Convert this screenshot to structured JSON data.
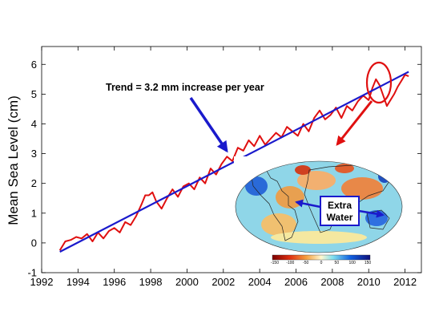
{
  "chart_data": {
    "type": "line",
    "ylabel": "Mean Sea Level (cm)",
    "xlabel": "",
    "title": "",
    "xlim": [
      1992,
      2012.9
    ],
    "ylim": [
      -1,
      6.6
    ],
    "x_ticks": [
      "1992",
      "1994",
      "1996",
      "1998",
      "2000",
      "2002",
      "2004",
      "2006",
      "2008",
      "2010",
      "2012"
    ],
    "y_ticks": [
      "-1",
      "0",
      "1",
      "2",
      "3",
      "4",
      "5",
      "6"
    ],
    "series": [
      {
        "color": "#e01010",
        "x": [
          1993.0,
          1993.3,
          1993.6,
          1993.9,
          1994.2,
          1994.5,
          1994.8,
          1995.1,
          1995.4,
          1995.7,
          1996.0,
          1996.3,
          1996.6,
          1996.9,
          1997.2,
          1997.5,
          1997.7,
          1997.9,
          1998.1,
          1998.3,
          1998.6,
          1998.9,
          1999.2,
          1999.5,
          1999.8,
          2000.1,
          2000.4,
          2000.7,
          2001.0,
          2001.3,
          2001.6,
          2001.9,
          2002.2,
          2002.5,
          2002.8,
          2003.1,
          2003.4,
          2003.7,
          2004.0,
          2004.3,
          2004.6,
          2004.9,
          2005.2,
          2005.5,
          2005.8,
          2006.1,
          2006.4,
          2006.7,
          2007.0,
          2007.3,
          2007.6,
          2007.9,
          2008.2,
          2008.5,
          2008.8,
          2009.1,
          2009.4,
          2009.7,
          2010.0,
          2010.2,
          2010.4,
          2010.6,
          2010.8,
          2011.0,
          2011.2,
          2011.4,
          2011.6,
          2011.8,
          2012.0,
          2012.2
        ],
        "values": [
          -0.25,
          0.05,
          0.1,
          0.2,
          0.15,
          0.3,
          0.05,
          0.35,
          0.15,
          0.4,
          0.5,
          0.35,
          0.7,
          0.6,
          0.9,
          1.3,
          1.6,
          1.6,
          1.7,
          1.4,
          1.15,
          1.5,
          1.8,
          1.55,
          1.9,
          2.0,
          1.8,
          2.2,
          2.0,
          2.5,
          2.3,
          2.65,
          2.9,
          2.75,
          3.2,
          3.1,
          3.45,
          3.25,
          3.6,
          3.3,
          3.5,
          3.7,
          3.55,
          3.9,
          3.75,
          3.6,
          4.0,
          3.75,
          4.2,
          4.45,
          4.15,
          4.3,
          4.55,
          4.2,
          4.6,
          4.45,
          4.75,
          4.95,
          4.8,
          5.2,
          5.5,
          5.3,
          4.95,
          4.6,
          4.8,
          5.0,
          5.25,
          5.45,
          5.65,
          5.6
        ]
      },
      {
        "color": "#1a1acc",
        "x": [
          1993.0,
          2012.2
        ],
        "values": [
          -0.3,
          5.75
        ]
      }
    ],
    "annotations": {
      "trend_text": "Trend = 3.2 mm increase per year",
      "inset_text_line1": "Extra",
      "inset_text_line2": "Water"
    },
    "inset_colorbar_ticks": [
      "-150",
      "-100",
      "-50",
      "0",
      "50",
      "100",
      "150"
    ],
    "grid": false,
    "legend": "none"
  }
}
